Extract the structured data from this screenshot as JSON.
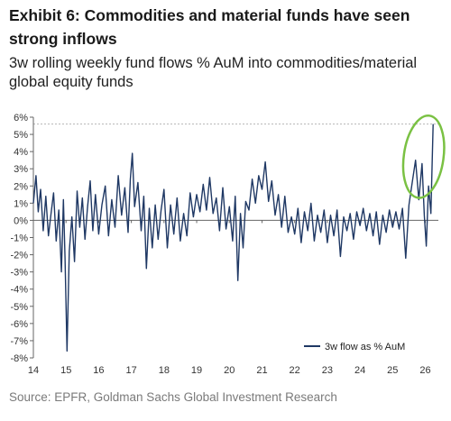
{
  "chart_data": {
    "type": "line",
    "title": "Exhibit 6: Commodities and material funds have seen strong inflows",
    "subtitle": "3w rolling weekly fund flows % AuM into commodities/material global equity funds",
    "source": "Source: EPFR, Goldman Sachs Global Investment Research",
    "xlabel": "",
    "ylabel": "",
    "x_ticks": [
      "14",
      "15",
      "16",
      "17",
      "18",
      "19",
      "20",
      "21",
      "22",
      "23",
      "24",
      "25",
      "26"
    ],
    "y_ticks": [
      "6%",
      "5%",
      "4%",
      "3%",
      "2%",
      "1%",
      "0%",
      "-1%",
      "-2%",
      "-3%",
      "-4%",
      "-5%",
      "-6%",
      "-7%",
      "-8%"
    ],
    "xlim": [
      2014,
      2026.4
    ],
    "ylim": [
      -8,
      6
    ],
    "grid": false,
    "reference_line": 5.6,
    "highlight": "green ellipse around the 2025-2026 spike",
    "legend_position": "bottom-right",
    "series": [
      {
        "name": "3w flow as % AuM",
        "color": "#1f3864",
        "x": [
          2014.0,
          2014.08,
          2014.15,
          2014.22,
          2014.3,
          2014.38,
          2014.46,
          2014.54,
          2014.62,
          2014.7,
          2014.78,
          2014.86,
          2014.92,
          2014.97,
          2015.03,
          2015.1,
          2015.18,
          2015.26,
          2015.34,
          2015.42,
          2015.5,
          2015.58,
          2015.66,
          2015.74,
          2015.82,
          2015.9,
          2016.0,
          2016.1,
          2016.2,
          2016.3,
          2016.4,
          2016.5,
          2016.6,
          2016.7,
          2016.8,
          2016.9,
          2016.97,
          2017.03,
          2017.1,
          2017.2,
          2017.3,
          2017.38,
          2017.46,
          2017.55,
          2017.64,
          2017.73,
          2017.82,
          2017.91,
          2018.0,
          2018.1,
          2018.2,
          2018.3,
          2018.4,
          2018.5,
          2018.6,
          2018.7,
          2018.8,
          2018.9,
          2019.0,
          2019.1,
          2019.2,
          2019.3,
          2019.4,
          2019.5,
          2019.6,
          2019.7,
          2019.8,
          2019.9,
          2020.0,
          2020.1,
          2020.18,
          2020.26,
          2020.34,
          2020.42,
          2020.5,
          2020.6,
          2020.7,
          2020.8,
          2020.9,
          2021.0,
          2021.1,
          2021.2,
          2021.3,
          2021.4,
          2021.5,
          2021.6,
          2021.7,
          2021.8,
          2021.9,
          2022.0,
          2022.1,
          2022.2,
          2022.3,
          2022.4,
          2022.5,
          2022.6,
          2022.7,
          2022.8,
          2022.9,
          2023.0,
          2023.1,
          2023.2,
          2023.3,
          2023.4,
          2023.5,
          2023.6,
          2023.7,
          2023.8,
          2023.9,
          2024.0,
          2024.1,
          2024.2,
          2024.3,
          2024.4,
          2024.5,
          2024.6,
          2024.7,
          2024.8,
          2024.9,
          2025.0,
          2025.1,
          2025.2,
          2025.3,
          2025.4,
          2025.5,
          2025.6,
          2025.7,
          2025.8,
          2025.9,
          2025.97,
          2026.03,
          2026.1,
          2026.17,
          2026.24
        ],
        "values": [
          1.0,
          2.6,
          0.5,
          1.8,
          -0.6,
          1.4,
          -0.9,
          0.4,
          1.6,
          -1.2,
          0.6,
          -3.0,
          1.2,
          -2.2,
          -7.6,
          -1.8,
          0.2,
          -2.4,
          1.7,
          -0.4,
          1.3,
          -1.1,
          0.8,
          2.3,
          -0.6,
          1.5,
          -0.8,
          0.9,
          2.0,
          -0.9,
          1.2,
          -0.4,
          2.6,
          0.3,
          1.9,
          -0.7,
          2.4,
          3.9,
          0.8,
          2.2,
          -0.6,
          1.4,
          -2.8,
          0.7,
          -1.6,
          0.9,
          -1.1,
          0.6,
          1.8,
          -1.6,
          0.9,
          -0.8,
          1.3,
          -1.2,
          0.4,
          -0.9,
          1.6,
          0.2,
          1.5,
          0.5,
          2.1,
          0.6,
          2.5,
          0.4,
          1.3,
          -0.6,
          1.9,
          -0.5,
          0.8,
          -1.2,
          1.4,
          -3.5,
          0.4,
          -1.6,
          1.1,
          0.6,
          2.4,
          1.0,
          2.6,
          1.8,
          3.4,
          1.1,
          2.3,
          0.3,
          1.5,
          -0.4,
          1.4,
          -0.7,
          0.2,
          -0.8,
          0.7,
          -1.3,
          0.5,
          -0.6,
          1.0,
          -1.2,
          0.3,
          -0.7,
          0.6,
          -1.3,
          0.3,
          -0.9,
          0.6,
          -2.1,
          0.2,
          -0.6,
          0.4,
          -1.1,
          0.5,
          -0.3,
          0.7,
          -0.6,
          0.4,
          -0.9,
          0.5,
          -1.4,
          0.3,
          -0.7,
          0.6,
          -0.4,
          0.5,
          -0.5,
          0.7,
          -2.2,
          0.9,
          2.2,
          3.5,
          1.2,
          3.3,
          0.3,
          -1.5,
          2.0,
          0.4,
          5.6
        ]
      }
    ]
  }
}
